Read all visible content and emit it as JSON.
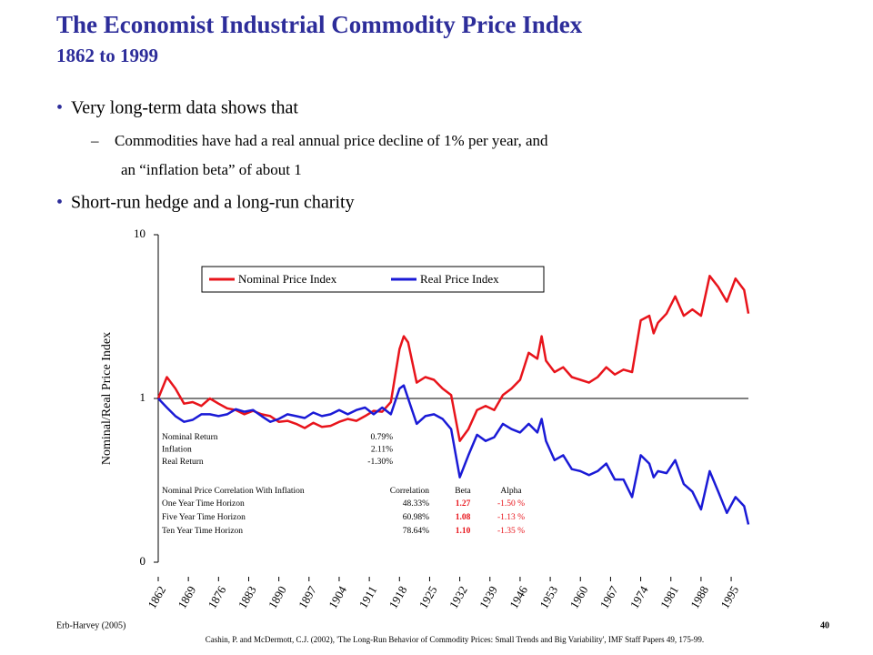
{
  "slide": {
    "title": "The Economist Industrial Commodity Price Index",
    "subtitle": "1862 to 1999",
    "bullets": [
      {
        "text": "Very long-term data shows that",
        "sub": [
          "Commodities have had a real annual price decline of 1% per year, and",
          "an “inflation beta” of about 1"
        ]
      },
      {
        "text": "Short-run hedge and a long-run charity",
        "sub": []
      }
    ],
    "footer_left": "Erb-Harvey (2005)",
    "page_number": "40",
    "citation": "Cashin, P. and McDermott, C.J. (2002), 'The Long-Run Behavior of Commodity Prices: Small Trends and Big Variability', IMF Staff Papers 49, 175-99."
  },
  "chart_data": {
    "type": "line",
    "y_label": "Nominal/Real Price Index",
    "log_scale_y": true,
    "x": [
      1862,
      1864,
      1866,
      1868,
      1870,
      1872,
      1874,
      1876,
      1878,
      1880,
      1882,
      1884,
      1886,
      1888,
      1890,
      1892,
      1894,
      1896,
      1898,
      1900,
      1902,
      1904,
      1906,
      1908,
      1910,
      1912,
      1914,
      1916,
      1918,
      1919,
      1920,
      1922,
      1924,
      1926,
      1928,
      1930,
      1932,
      1934,
      1936,
      1938,
      1940,
      1942,
      1944,
      1946,
      1948,
      1950,
      1951,
      1952,
      1954,
      1956,
      1958,
      1960,
      1962,
      1964,
      1966,
      1968,
      1970,
      1972,
      1974,
      1976,
      1977,
      1978,
      1980,
      1982,
      1984,
      1986,
      1988,
      1990,
      1992,
      1994,
      1996,
      1998,
      1999
    ],
    "series": [
      {
        "name": "Nominal Price Index",
        "color": "#e8141b",
        "values": [
          1.0,
          1.35,
          1.15,
          0.93,
          0.95,
          0.9,
          1.0,
          0.93,
          0.87,
          0.85,
          0.8,
          0.84,
          0.8,
          0.78,
          0.72,
          0.73,
          0.7,
          0.66,
          0.71,
          0.67,
          0.68,
          0.72,
          0.75,
          0.73,
          0.78,
          0.84,
          0.83,
          0.95,
          2.0,
          2.4,
          2.2,
          1.25,
          1.35,
          1.3,
          1.15,
          1.05,
          0.55,
          0.65,
          0.85,
          0.9,
          0.85,
          1.05,
          1.15,
          1.3,
          1.9,
          1.75,
          2.4,
          1.7,
          1.45,
          1.55,
          1.35,
          1.3,
          1.25,
          1.35,
          1.55,
          1.4,
          1.5,
          1.45,
          3.0,
          3.2,
          2.5,
          2.9,
          3.3,
          4.2,
          3.2,
          3.5,
          3.2,
          5.6,
          4.8,
          3.9,
          5.4,
          4.6,
          3.3
        ]
      },
      {
        "name": "Real Price Index",
        "color": "#1a1ad6",
        "values": [
          1.0,
          0.88,
          0.78,
          0.72,
          0.74,
          0.8,
          0.8,
          0.78,
          0.8,
          0.86,
          0.83,
          0.85,
          0.78,
          0.72,
          0.75,
          0.8,
          0.78,
          0.76,
          0.82,
          0.78,
          0.8,
          0.85,
          0.8,
          0.85,
          0.88,
          0.8,
          0.88,
          0.8,
          1.15,
          1.2,
          1.0,
          0.7,
          0.78,
          0.8,
          0.75,
          0.65,
          0.33,
          0.45,
          0.6,
          0.55,
          0.58,
          0.7,
          0.65,
          0.62,
          0.7,
          0.62,
          0.75,
          0.55,
          0.42,
          0.45,
          0.37,
          0.36,
          0.34,
          0.36,
          0.4,
          0.32,
          0.32,
          0.25,
          0.45,
          0.4,
          0.33,
          0.36,
          0.35,
          0.42,
          0.3,
          0.27,
          0.21,
          0.36,
          0.27,
          0.2,
          0.25,
          0.22,
          0.17
        ]
      }
    ],
    "xlim": [
      1862,
      1999
    ],
    "xticks": [
      1862,
      1869,
      1876,
      1883,
      1890,
      1897,
      1904,
      1911,
      1918,
      1925,
      1932,
      1939,
      1946,
      1953,
      1960,
      1967,
      1974,
      1981,
      1988,
      1995
    ],
    "ylim": [
      0.1,
      10
    ],
    "yticks": [
      {
        "value": 0.1,
        "label": "0"
      },
      1,
      10
    ],
    "reference_line": 1,
    "summary_table": [
      [
        "Nominal Return",
        "0.79%"
      ],
      [
        "Inflation",
        "2.11%"
      ],
      [
        "Real Return",
        "-1.30%"
      ]
    ],
    "correlation_table": {
      "header": [
        "Nominal Price Correlation With Inflation",
        "Correlation",
        "Beta",
        "Alpha"
      ],
      "rows": [
        [
          "One Year Time Horizon",
          "48.33%",
          "1.27",
          "-1.50 %"
        ],
        [
          "Five Year Time Horizon",
          "60.98%",
          "1.08",
          "-1.13 %"
        ],
        [
          "Ten Year Time Horizon",
          "78.64%",
          "1.10",
          "-1.35 %"
        ]
      ]
    }
  }
}
